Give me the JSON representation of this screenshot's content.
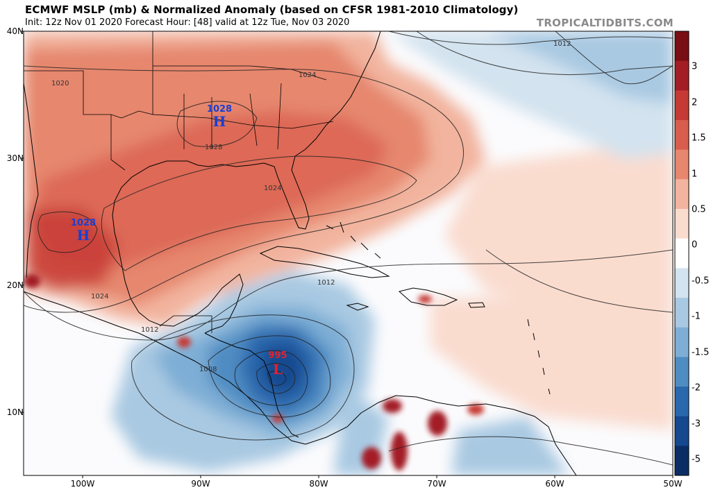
{
  "header": {
    "title": "ECMWF MSLP (mb) & Normalized Anomaly (based on CFSR 1981-2010 Climatology)",
    "subtitle": "Init: 12z Nov 01 2020   Forecast Hour: [48]   valid at 12z Tue, Nov 03 2020",
    "brand": "TROPICALTIDBITS.COM"
  },
  "axes": {
    "lat_labels": [
      "40N",
      "30N",
      "20N",
      "10N"
    ],
    "lon_labels": [
      "100W",
      "90W",
      "80W",
      "70W",
      "60W",
      "50W"
    ]
  },
  "colorbar": {
    "labels": [
      "3",
      "2",
      "1.5",
      "1",
      "0.5",
      "0",
      "-0.5",
      "-1",
      "-1.5",
      "-2",
      "-3",
      "-5"
    ],
    "colors": [
      "#7a0e15",
      "#a31d25",
      "#c63a35",
      "#d85d4c",
      "#e6876e",
      "#f2b49e",
      "#fadccf",
      "#ffffff",
      "#d3e3ef",
      "#a9c9e2",
      "#7eaed5",
      "#4f8cc2",
      "#2a68ad",
      "#15488f",
      "#0b2d66"
    ]
  },
  "features": {
    "highs": [
      {
        "label": "H",
        "value": "1028"
      },
      {
        "label": "H",
        "value": "1028"
      }
    ],
    "lows": [
      {
        "label": "L",
        "value": "995"
      }
    ],
    "isobar_labels": [
      "1012",
      "1024",
      "1020",
      "1028",
      "1024",
      "1024",
      "1012",
      "1012",
      "1008"
    ]
  }
}
